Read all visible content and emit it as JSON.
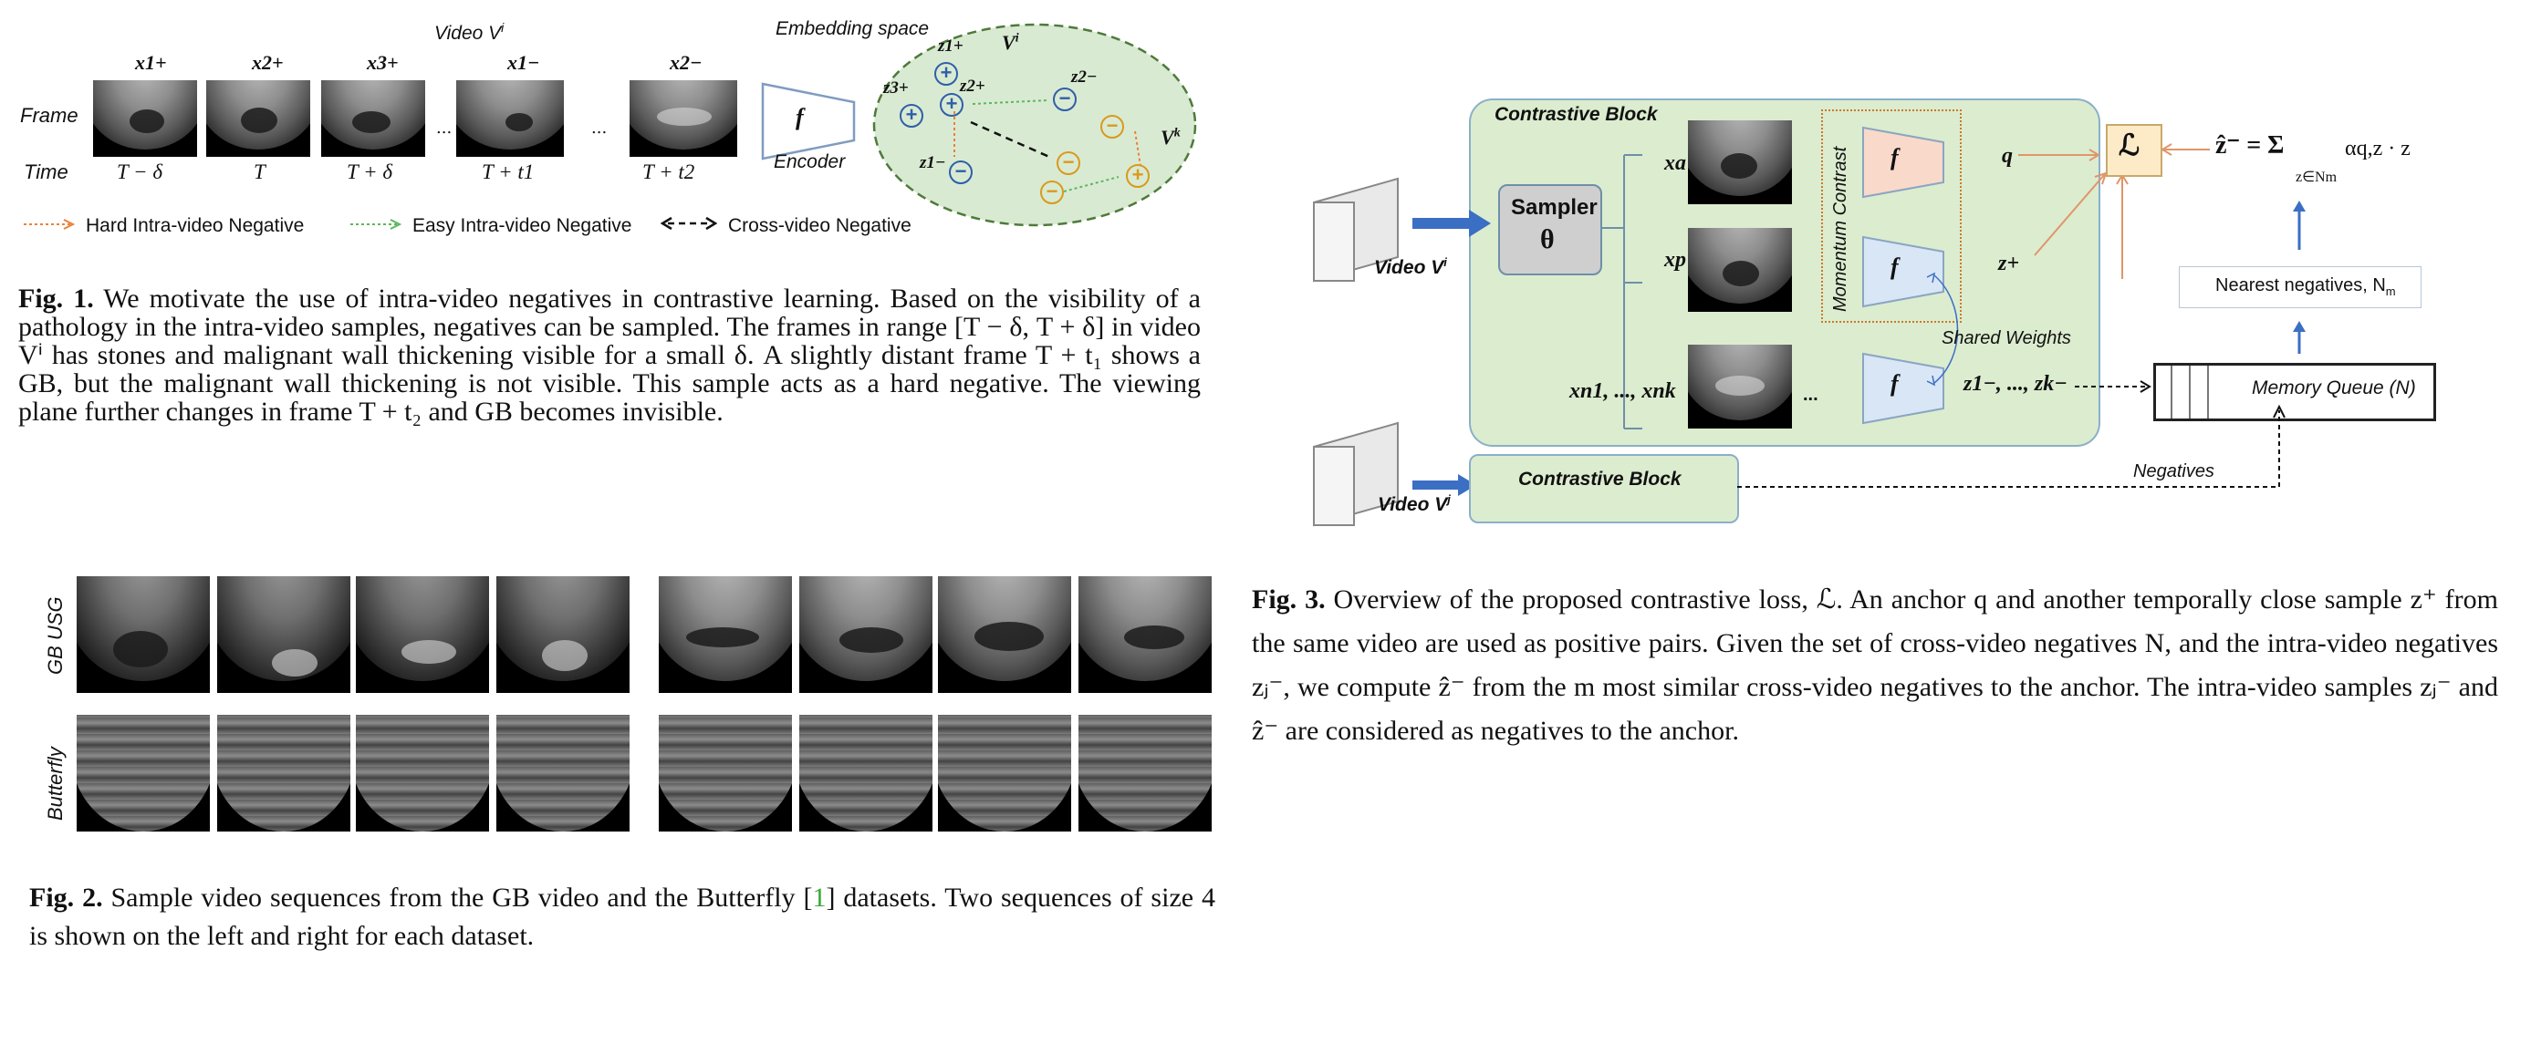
{
  "fig1": {
    "video_label": "Video V",
    "video_sup": "i",
    "frame_label": "Frame",
    "time_label": "Time",
    "frame_headers": [
      "x1+",
      "x2+",
      "x3+",
      "x1−",
      "x2−"
    ],
    "times": [
      "T − δ",
      "T",
      "T + δ",
      "T + t1",
      "T + t2"
    ],
    "ellipsis": "...",
    "encoder_symbol": "f",
    "encoder_label": "Encoder",
    "embedding_label": "Embedding space",
    "space_vi": "V",
    "space_vi_sup": "i",
    "space_vk": "V",
    "space_vk_sup": "k",
    "embed_points": [
      "z1+",
      "z2+",
      "z3+",
      "z2−",
      "z1−"
    ],
    "legend": [
      "Hard Intra-video Negative",
      "Easy Intra-video Negative",
      "Cross-video Negative"
    ],
    "colors": {
      "hard": "#e8823a",
      "easy": "#5cb85c",
      "space_fill": "#d9ead3",
      "space_border": "#4f7a3a",
      "pos": "#2f5fa8",
      "neg": "#d99a1c"
    },
    "caption_label": "Fig. 1.",
    "caption": "We motivate the use of intra-video negatives in contrastive learning. Based on the visibility of a pathology in the intra-video samples, negatives can be sampled. The frames in range [T − δ, T + δ] in video Vⁱ has stones and malignant wall thickening visible for a small δ. A slightly distant frame T + t₁ shows a GB, but the malignant wall thickening is not visible. This sample acts as a hard negative. The viewing plane further changes in frame T + t₂ and GB becomes invisible."
  },
  "fig2": {
    "row_labels": [
      "GB USG",
      "Butterfly"
    ],
    "caption_label": "Fig. 2.",
    "caption_pre": "Sample video sequences from the GB video and the Butterfly [",
    "caption_ref": "1",
    "caption_post": "] datasets. Two sequences of size 4 is shown on the left and right for each dataset.",
    "ref_color": "#3aa63a"
  },
  "fig3": {
    "contrastive_block": "Contrastive Block",
    "contrastive_block_2": "Contrastive Block",
    "video_vi": "Video V",
    "video_vi_sup": "i",
    "video_vj": "Video V",
    "video_vj_sup": "j",
    "sampler": "Sampler",
    "theta": "θ",
    "inputs": [
      "xa",
      "xp",
      "xn1, ..., xnk"
    ],
    "ellipsis": "...",
    "momentum": "Momentum Contrast",
    "encoder_symbol": "f",
    "outputs": [
      "q",
      "z+",
      "z1−, ..., zk−"
    ],
    "shared_weights": "Shared Weights",
    "loss": "ℒ",
    "zhat_eq": "ẑ⁻ = Σ",
    "sum_sub": "z∈Nm",
    "sum_term": "αq,z · z",
    "nearest": "Nearest negatives, N",
    "nearest_sub": "m",
    "memory": "Memory Queue (N)",
    "negatives": "Negatives",
    "colors": {
      "block_fill": "#dceccf",
      "block_border": "#8ab0c8",
      "f_top": "#f9d9c9",
      "f_low": "#d9e6f6",
      "loss_fill": "#fdebc8",
      "arrow_blue": "#3b6fc4",
      "arrow_orange": "#e0956a"
    },
    "caption_label": "Fig. 3.",
    "caption": "Overview of the proposed contrastive loss, ℒ. An anchor q and another temporally close sample z⁺ from the same video are used as positive pairs. Given the set of cross-video negatives N, and the intra-video negatives zⱼ⁻, we compute ẑ⁻ from the m most similar cross-video negatives to the anchor. The intra-video samples zⱼ⁻ and ẑ⁻ are considered as negatives to the anchor."
  }
}
